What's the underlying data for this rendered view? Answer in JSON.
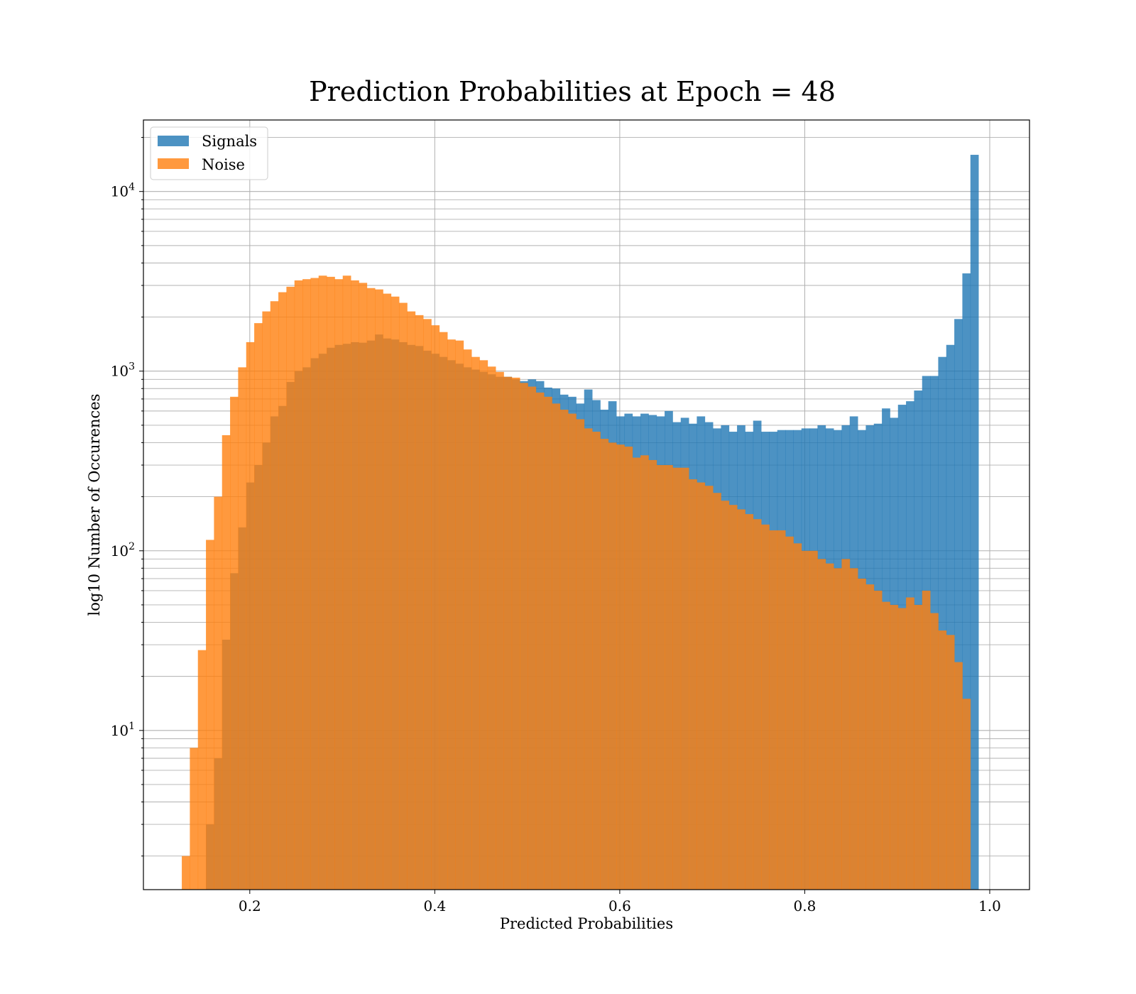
{
  "chart_data": {
    "type": "bar",
    "title": "Prediction Probabilities at Epoch = 48",
    "xlabel": "Predicted Probabilities",
    "ylabel": "log10 Number of Occurences",
    "yscale": "log",
    "xlim": [
      0.085,
      1.043
    ],
    "ylim": [
      1.3,
      25000
    ],
    "grid": true,
    "legend_position": "top-left",
    "xticks": [
      {
        "value": 0.2,
        "label": "0.2"
      },
      {
        "value": 0.4,
        "label": "0.4"
      },
      {
        "value": 0.6,
        "label": "0.6"
      },
      {
        "value": 0.8,
        "label": "0.8"
      },
      {
        "value": 1.0,
        "label": "1.0"
      }
    ],
    "yticks": [
      {
        "value": 10,
        "base": "10",
        "exp": "1"
      },
      {
        "value": 100,
        "base": "10",
        "exp": "2"
      },
      {
        "value": 1000,
        "base": "10",
        "exp": "3"
      },
      {
        "value": 10000,
        "base": "10",
        "exp": "4"
      }
    ],
    "series": [
      {
        "name": "Signals",
        "color": "#1f77b4",
        "opacity": 0.8,
        "bin_start": 0.1265,
        "bin_width": 0.0087,
        "counts": [
          0,
          0,
          0,
          3,
          7,
          32,
          75,
          135,
          240,
          300,
          400,
          560,
          640,
          870,
          1000,
          1050,
          1180,
          1250,
          1350,
          1400,
          1420,
          1450,
          1440,
          1480,
          1600,
          1520,
          1500,
          1450,
          1400,
          1380,
          1300,
          1250,
          1200,
          1150,
          1100,
          1050,
          1020,
          990,
          960,
          930,
          930,
          900,
          880,
          900,
          880,
          810,
          800,
          740,
          720,
          660,
          790,
          690,
          610,
          680,
          560,
          580,
          560,
          580,
          570,
          560,
          600,
          520,
          550,
          510,
          560,
          520,
          480,
          500,
          460,
          500,
          460,
          530,
          460,
          460,
          470,
          470,
          470,
          480,
          480,
          500,
          480,
          470,
          500,
          560,
          470,
          500,
          510,
          620,
          550,
          650,
          680,
          780,
          940,
          940,
          1200,
          1400,
          1950,
          3500,
          16000
        ]
      },
      {
        "name": "Noise",
        "color": "#ff7f0e",
        "opacity": 0.8,
        "bin_start": 0.1265,
        "bin_width": 0.0087,
        "counts": [
          2,
          8,
          28,
          115,
          200,
          440,
          720,
          1050,
          1450,
          1850,
          2150,
          2450,
          2750,
          2950,
          3200,
          3250,
          3300,
          3400,
          3350,
          3250,
          3400,
          3200,
          3100,
          2900,
          2850,
          2700,
          2600,
          2400,
          2150,
          2050,
          1950,
          1800,
          1650,
          1500,
          1480,
          1320,
          1200,
          1150,
          1060,
          990,
          930,
          920,
          860,
          820,
          760,
          720,
          660,
          610,
          580,
          540,
          480,
          460,
          420,
          400,
          390,
          380,
          330,
          340,
          320,
          300,
          300,
          290,
          290,
          250,
          240,
          230,
          210,
          190,
          180,
          170,
          160,
          150,
          140,
          130,
          130,
          120,
          110,
          100,
          100,
          90,
          85,
          80,
          90,
          80,
          70,
          65,
          60,
          52,
          50,
          48,
          55,
          50,
          60,
          45,
          36,
          34,
          24,
          15,
          0
        ]
      }
    ]
  }
}
